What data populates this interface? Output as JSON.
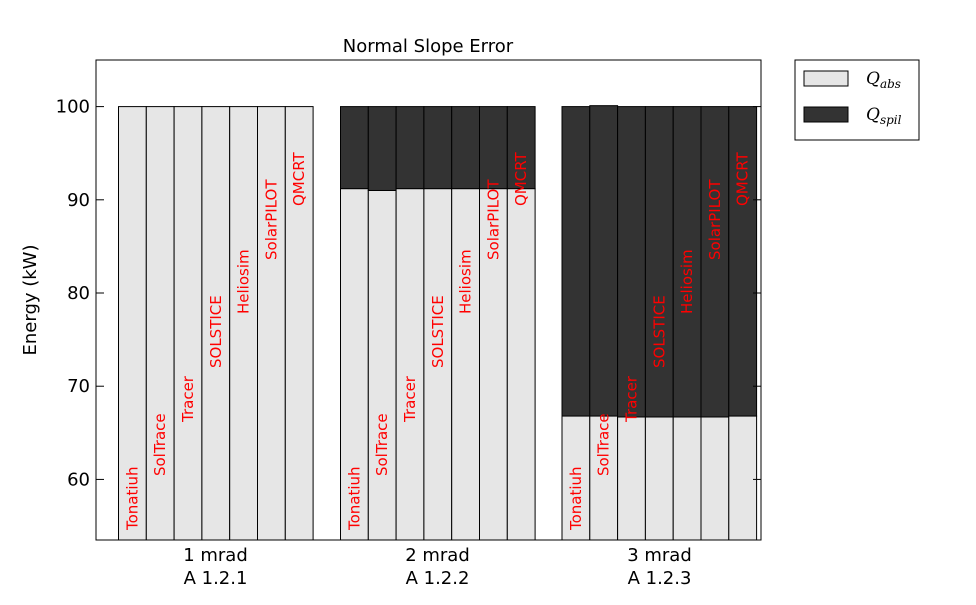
{
  "chart_data": {
    "type": "bar",
    "subtype": "stacked",
    "title": "Normal Slope Error",
    "ylabel": "Energy (kW)",
    "ylim": [
      53.5,
      105
    ],
    "yticks": [
      60,
      70,
      80,
      90,
      100
    ],
    "grid": false,
    "legend_position": "outside-top-right",
    "legend": [
      {
        "series": "Q_abs",
        "base": "Q",
        "sub": "abs",
        "color": "#e6e6e6"
      },
      {
        "series": "Q_spil",
        "base": "Q",
        "sub": "spil",
        "color": "#333333"
      }
    ],
    "label_color": "#ff0000",
    "groups": [
      {
        "label_line1": "1 mrad",
        "label_line2": "A 1.2.1",
        "bars": [
          {
            "name": "Tonatiuh",
            "Q_abs": 100.0,
            "Q_spil": 0.0
          },
          {
            "name": "SolTrace",
            "Q_abs": 100.0,
            "Q_spil": 0.0
          },
          {
            "name": "Tracer",
            "Q_abs": 100.0,
            "Q_spil": 0.0
          },
          {
            "name": "SOLSTICE",
            "Q_abs": 100.0,
            "Q_spil": 0.0
          },
          {
            "name": "Heliosim",
            "Q_abs": 100.0,
            "Q_spil": 0.0
          },
          {
            "name": "SolarPILOT",
            "Q_abs": 100.0,
            "Q_spil": 0.0
          },
          {
            "name": "QMCRT",
            "Q_abs": 100.0,
            "Q_spil": 0.0
          }
        ]
      },
      {
        "label_line1": "2 mrad",
        "label_line2": "A 1.2.2",
        "bars": [
          {
            "name": "Tonatiuh",
            "Q_abs": 91.2,
            "Q_spil": 8.8
          },
          {
            "name": "SolTrace",
            "Q_abs": 91.0,
            "Q_spil": 9.0
          },
          {
            "name": "Tracer",
            "Q_abs": 91.2,
            "Q_spil": 8.8
          },
          {
            "name": "SOLSTICE",
            "Q_abs": 91.2,
            "Q_spil": 8.8
          },
          {
            "name": "Heliosim",
            "Q_abs": 91.2,
            "Q_spil": 8.8
          },
          {
            "name": "SolarPILOT",
            "Q_abs": 91.2,
            "Q_spil": 8.8
          },
          {
            "name": "QMCRT",
            "Q_abs": 91.2,
            "Q_spil": 8.8
          }
        ]
      },
      {
        "label_line1": "3 mrad",
        "label_line2": "A 1.2.3",
        "bars": [
          {
            "name": "Tonatiuh",
            "Q_abs": 66.8,
            "Q_spil": 33.2
          },
          {
            "name": "SolTrace",
            "Q_abs": 66.8,
            "Q_spil": 33.3
          },
          {
            "name": "Tracer",
            "Q_abs": 66.7,
            "Q_spil": 33.3
          },
          {
            "name": "SOLSTICE",
            "Q_abs": 66.7,
            "Q_spil": 33.3
          },
          {
            "name": "Heliosim",
            "Q_abs": 66.7,
            "Q_spil": 33.3
          },
          {
            "name": "SolarPILOT",
            "Q_abs": 66.7,
            "Q_spil": 33.3
          },
          {
            "name": "QMCRT",
            "Q_abs": 66.8,
            "Q_spil": 33.2
          }
        ]
      }
    ]
  }
}
